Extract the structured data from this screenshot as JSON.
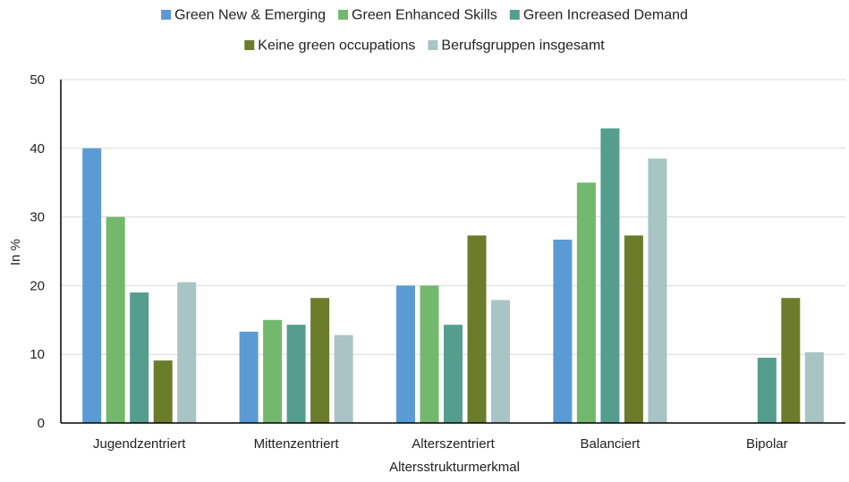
{
  "chart_data": {
    "type": "bar",
    "title": "",
    "xlabel": "Altersstrukturmerkmal",
    "ylabel": "In %",
    "ylim": [
      0,
      50
    ],
    "yticks": [
      0,
      10,
      20,
      30,
      40,
      50
    ],
    "grid": true,
    "legend_position": "top",
    "categories": [
      "Jugendzentriert",
      "Mittenzentriert",
      "Alterszentriert",
      "Balanciert",
      "Bipolar"
    ],
    "series": [
      {
        "name": "Green New & Emerging",
        "color": "#5B9BD5",
        "values": [
          40.0,
          13.3,
          20.0,
          26.7,
          0
        ]
      },
      {
        "name": "Green Enhanced Skills",
        "color": "#72B86D",
        "values": [
          30.0,
          15.0,
          20.0,
          35.0,
          0
        ]
      },
      {
        "name": "Green Increased Demand",
        "color": "#559E8E",
        "values": [
          19.0,
          14.3,
          14.3,
          42.9,
          9.5
        ]
      },
      {
        "name": "Keine green occupations",
        "color": "#6B7D2B",
        "values": [
          9.1,
          18.2,
          27.3,
          27.3,
          18.2
        ]
      },
      {
        "name": "Berufsgruppen insgesamt",
        "color": "#A9C4C4",
        "values": [
          20.5,
          12.8,
          17.9,
          38.5,
          10.3
        ]
      }
    ]
  }
}
